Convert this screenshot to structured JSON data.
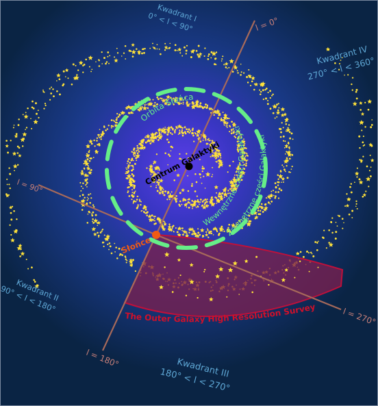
{
  "quadrants": {
    "q1": {
      "name": "Kwadrant I",
      "range": "0° < l < 90°"
    },
    "q2": {
      "name": "Kwadrant II",
      "range": "90° < l < 180°"
    },
    "q3": {
      "name": "Kwadrant III",
      "range": "180° < l < 270°"
    },
    "q4": {
      "name": "Kwadrant IV",
      "range": "270° < l < 360°"
    }
  },
  "axes": {
    "l0": "l = 0°",
    "l90": "l = 90°",
    "l180": "l = 180°",
    "l270": "l = 270°"
  },
  "labels": {
    "center": "Centrum Galaktyki",
    "sun": "Słońce",
    "sun_orbit": "Orbita Słońca",
    "inner": "Wewnętrzne części Galaktyki",
    "outer": "Zewnętrzne części Galaktyki",
    "survey": "The Outer Galaxy High Resolution Survey"
  },
  "colors": {
    "background": "#0a2444",
    "glow": "#4a35d8",
    "axis": "#a86a5a",
    "orbit": "#66ee88",
    "star": "#ffe23a",
    "sun": "#f05a14",
    "survey_fill": "#7a2050",
    "survey_stroke": "#c0103a",
    "quadrant_text": "#5fa8d6",
    "axis_text": "#c8807a"
  }
}
